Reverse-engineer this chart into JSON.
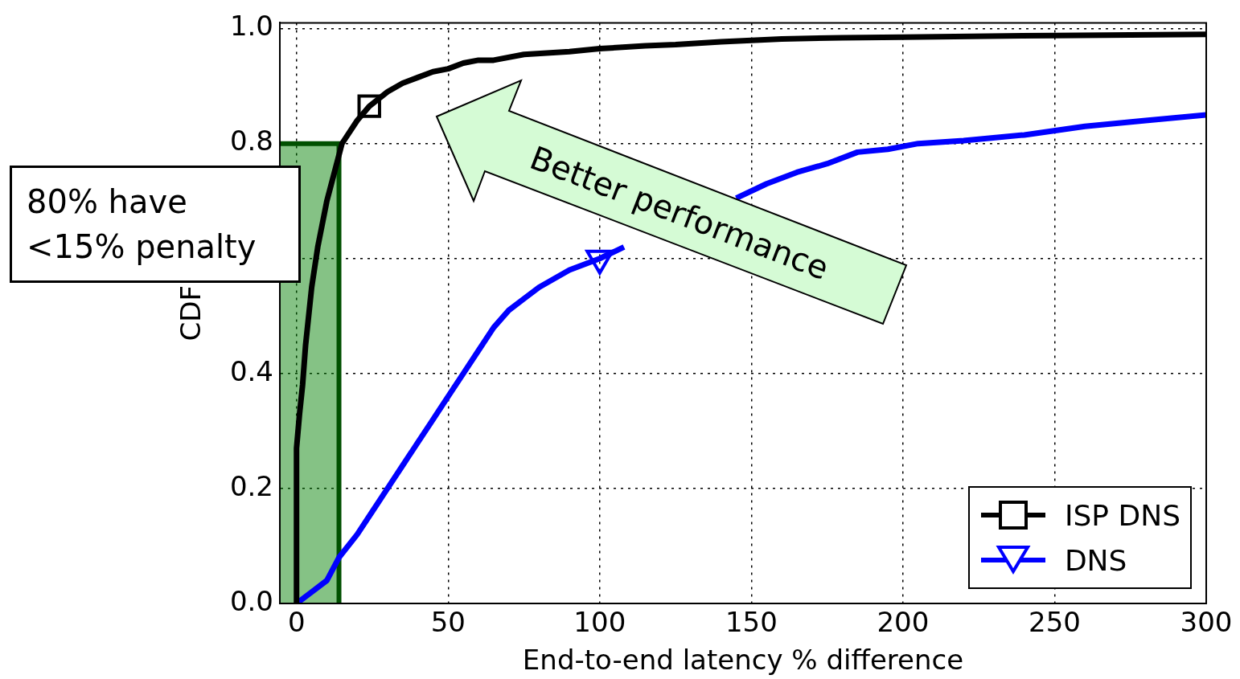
{
  "chart_data": {
    "type": "line",
    "xlabel": "End-to-end latency % difference",
    "ylabel": "CDF",
    "xlim": [
      -5.5,
      300
    ],
    "xticks": [
      0,
      50,
      100,
      150,
      200,
      250,
      300
    ],
    "ylim": [
      0,
      1.01
    ],
    "yticks": [
      {
        "value": 0,
        "label": "0.0"
      },
      0.2,
      0.4,
      {
        "value": 0.6,
        "label": null
      },
      0.8,
      {
        "value": 1,
        "label": "1.0"
      }
    ],
    "grid": true,
    "legend": "bottom right",
    "line_style": "solid",
    "series": [
      {
        "name": "ISP DNS",
        "color": "#000000",
        "x": [
          0,
          0,
          1,
          2,
          3,
          5,
          7,
          10,
          13,
          15,
          20,
          24,
          30,
          35,
          40,
          45,
          50,
          55,
          60,
          65,
          75,
          90,
          100,
          115,
          125,
          140,
          160,
          180,
          200,
          250,
          300
        ],
        "values": [
          0,
          0.27,
          0.33,
          0.38,
          0.45,
          0.55,
          0.62,
          0.7,
          0.76,
          0.8,
          0.84,
          0.865,
          0.89,
          0.905,
          0.915,
          0.925,
          0.93,
          0.94,
          0.945,
          0.945,
          0.955,
          0.96,
          0.965,
          0.97,
          0.972,
          0.977,
          0.982,
          0.984,
          0.985,
          0.988,
          0.99
        ]
      },
      {
        "name": "DNS",
        "color": "#0000ff",
        "x": [
          0,
          5,
          10,
          14,
          20,
          25,
          30,
          35,
          40,
          45,
          50,
          55,
          60,
          65,
          70,
          75,
          80,
          90,
          100,
          108,
          120,
          130,
          145,
          155,
          165,
          175,
          185,
          195,
          205,
          220,
          240,
          260,
          280,
          300
        ],
        "values": [
          0,
          0.02,
          0.04,
          0.08,
          0.12,
          0.16,
          0.2,
          0.24,
          0.28,
          0.32,
          0.36,
          0.4,
          0.44,
          0.48,
          0.51,
          0.53,
          0.55,
          0.58,
          0.6,
          0.62,
          null,
          null,
          0.705,
          0.73,
          0.75,
          0.765,
          0.785,
          0.79,
          0.8,
          0.805,
          0.815,
          0.83,
          0.84,
          0.85
        ]
      },
      {
        "type": "scatter",
        "color": "#000000",
        "marker": "square",
        "x": [
          24
        ],
        "values": [
          0.865
        ]
      },
      {
        "type": "scatter",
        "color": "#0000ff",
        "marker": "triangle",
        "x": [
          100
        ],
        "values": [
          0.6
        ]
      }
    ],
    "bands": [
      {
        "axis": "x",
        "from": -5.5,
        "to": 14,
        "color": "#008000",
        "label": "80% have\n<15% penalty"
      }
    ],
    "annotations": [
      "Better performance"
    ]
  }
}
